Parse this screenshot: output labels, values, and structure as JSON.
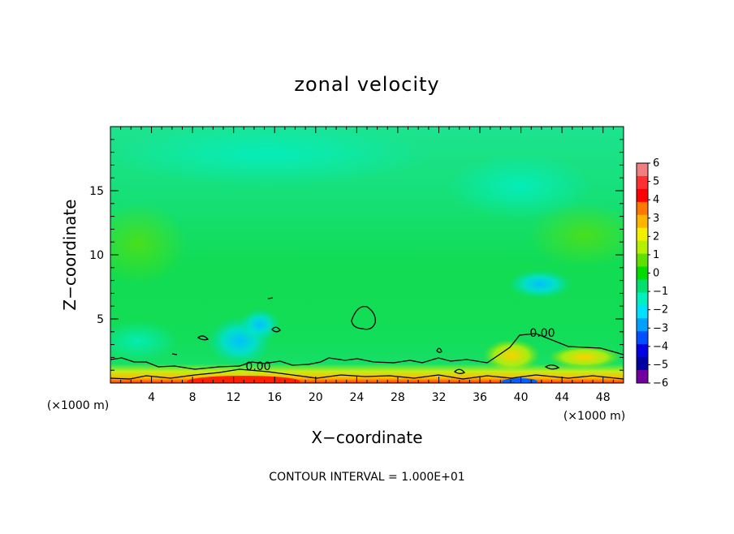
{
  "chart_data": {
    "type": "heatmap",
    "title": "zonal velocity",
    "xlabel": "X−coordinate",
    "ylabel": "Z−coordinate",
    "x_unit_label": "(×1000 m)",
    "y_unit_label": "(×1000 m)",
    "footer": "CONTOUR INTERVAL = 1.000E+01",
    "contour_label": "0.00",
    "xlim": [
      0,
      50
    ],
    "ylim": [
      0,
      20
    ],
    "x_ticks": [
      4,
      8,
      12,
      16,
      20,
      24,
      28,
      32,
      36,
      40,
      44,
      48
    ],
    "x_tick_labels": [
      "4",
      "8",
      "12",
      "16",
      "20",
      "24",
      "28",
      "32",
      "36",
      "40",
      "44",
      "48"
    ],
    "y_ticks": [
      5,
      10,
      15
    ],
    "y_tick_labels": [
      "5",
      "10",
      "15"
    ],
    "colorbar": {
      "range": [
        -6,
        6
      ],
      "tick_values": [
        6,
        5,
        4,
        3,
        2,
        1,
        0,
        -1,
        -2,
        -3,
        -4,
        -5,
        -6
      ],
      "tick_labels": [
        "6",
        "5",
        "4",
        "3",
        "2",
        "1",
        "0",
        "−1",
        "−2",
        "−3",
        "−4",
        "−5",
        "−6"
      ],
      "colors": [
        "#f08080",
        "#ff3030",
        "#ff0000",
        "#ff7800",
        "#ffb400",
        "#f0f000",
        "#b4f000",
        "#60e000",
        "#00dc00",
        "#00e070",
        "#00f0c0",
        "#00e0ff",
        "#00a0ff",
        "#0050ff",
        "#0000e0",
        "#0000a0",
        "#7000a0"
      ]
    }
  }
}
